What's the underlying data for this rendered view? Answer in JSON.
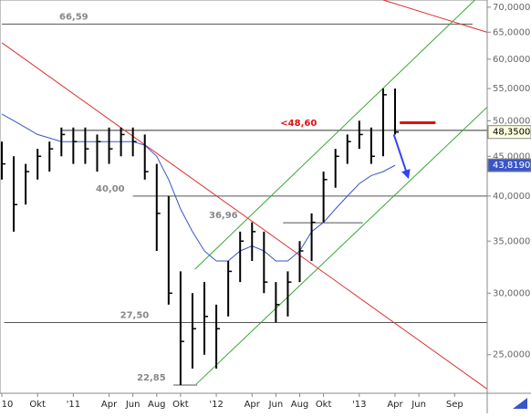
{
  "chart_data": {
    "type": "ohlc",
    "log_scale": true,
    "categories": [
      "10",
      null,
      null,
      "Okt",
      null,
      null,
      "'11",
      null,
      null,
      "Apr",
      null,
      "Jun",
      null,
      "Aug",
      null,
      "Okt",
      null,
      null,
      "'12",
      null,
      null,
      "Apr",
      null,
      "Jun",
      null,
      "Aug",
      null,
      "Okt",
      null,
      null,
      "'13",
      null,
      null,
      "Apr",
      null,
      "Jun",
      null,
      null,
      "Sep",
      null,
      null
    ],
    "high": [
      47,
      45,
      44,
      46,
      47,
      49,
      49,
      49,
      48,
      49,
      49,
      49,
      48,
      44,
      40,
      32,
      30,
      31,
      29,
      33,
      36,
      37,
      36,
      31,
      32,
      35,
      38,
      43,
      46,
      48,
      50,
      49,
      55,
      55,
      null,
      null,
      null,
      null,
      null,
      null,
      null
    ],
    "low": [
      42,
      36,
      39,
      42,
      43,
      45,
      44,
      44,
      43,
      44,
      45,
      45,
      42,
      34,
      29,
      22.85,
      24,
      25,
      24,
      28,
      31,
      33,
      30,
      27.5,
      28,
      31,
      33,
      37,
      41,
      44,
      46,
      44,
      45,
      48,
      null,
      null,
      null,
      null,
      null,
      null,
      null
    ],
    "close": [
      44,
      39,
      43,
      45,
      46,
      48,
      47,
      46,
      47,
      46,
      48,
      47,
      43,
      38,
      30,
      26,
      27,
      28,
      27,
      32,
      35,
      36,
      31,
      29,
      31,
      34,
      37,
      42,
      45,
      47,
      48,
      45,
      54,
      48.35,
      null,
      null,
      null,
      null,
      null,
      null,
      null
    ],
    "close_color": "#000000",
    "ma": [
      51,
      50,
      49,
      48,
      47.5,
      47,
      47,
      47,
      47,
      47,
      47,
      47,
      46.5,
      45,
      42,
      38.5,
      36,
      34,
      33,
      33,
      34,
      34.5,
      34,
      33,
      33,
      34,
      36,
      37,
      38.5,
      40,
      41.5,
      42.5,
      43,
      43.819,
      null,
      null,
      null,
      null,
      null,
      null,
      null
    ],
    "ma_color": "#3a55c8",
    "ylim": [
      22.3,
      71.5
    ],
    "yticks": [
      {
        "value": 25,
        "label": "25,0000"
      },
      {
        "value": 30,
        "label": "30,0000"
      },
      {
        "value": 35,
        "label": "35,0000"
      },
      {
        "value": 40,
        "label": "40,0000"
      },
      {
        "value": 45,
        "label": "45,0000"
      },
      {
        "value": 50,
        "label": "50,0000"
      },
      {
        "value": 55,
        "label": "55,0000"
      },
      {
        "value": 60,
        "label": "60,0000"
      },
      {
        "value": 65,
        "label": "65,0000"
      },
      {
        "value": 70,
        "label": "70,0000"
      }
    ],
    "price_tags": [
      {
        "value": 48.35,
        "label": "48,3500",
        "color": "#000000",
        "fill": "#ffffe0"
      },
      {
        "value": 43.819,
        "label": "43,8190",
        "color": "#ffffff",
        "fill": "#3a55c8"
      }
    ],
    "levels": [
      {
        "value": 66.59,
        "label": "66,59",
        "from": 0,
        "to": 39.5,
        "color": "#555555"
      },
      {
        "value": 48.6,
        "label": "<48,60",
        "from": 5,
        "to": 40.7,
        "color": "#333333",
        "label_color": "#e01010"
      },
      {
        "value": 40,
        "label": "40,00",
        "from": 11,
        "to": 40.7,
        "color": "#555555"
      },
      {
        "value": 36.96,
        "label": "36,96",
        "from": 23.6,
        "to": 30.3,
        "color": "#555555"
      },
      {
        "value": 27.5,
        "label": "27,50",
        "from": 0.2,
        "to": 40.7,
        "color": "#555555"
      },
      {
        "value": 22.85,
        "label": "22,85",
        "from": 14.4,
        "to": 16.4,
        "color": "#555555"
      }
    ],
    "trendlines": [
      {
        "color": "#e03030",
        "points": [
          [
            0,
            63
          ],
          [
            40.7,
            22.6
          ]
        ]
      },
      {
        "color": "#e03030",
        "points": [
          [
            32,
            71.5
          ],
          [
            40.7,
            65
          ]
        ]
      },
      {
        "color": "#33aa33",
        "points": [
          [
            16.3,
            22.9
          ],
          [
            40.7,
            52
          ]
        ]
      },
      {
        "color": "#33aa33",
        "points": [
          [
            16.2,
            32.2
          ],
          [
            39.7,
            71.5
          ]
        ]
      },
      {
        "color": "#e01010",
        "points": [
          [
            33.4,
            49.7
          ],
          [
            36.4,
            49.7
          ]
        ],
        "width": 3
      },
      {
        "color": "#3344ee",
        "points": [
          [
            32.9,
            48
          ],
          [
            34.1,
            42.3
          ]
        ],
        "width": 2,
        "arrow": true
      }
    ]
  }
}
